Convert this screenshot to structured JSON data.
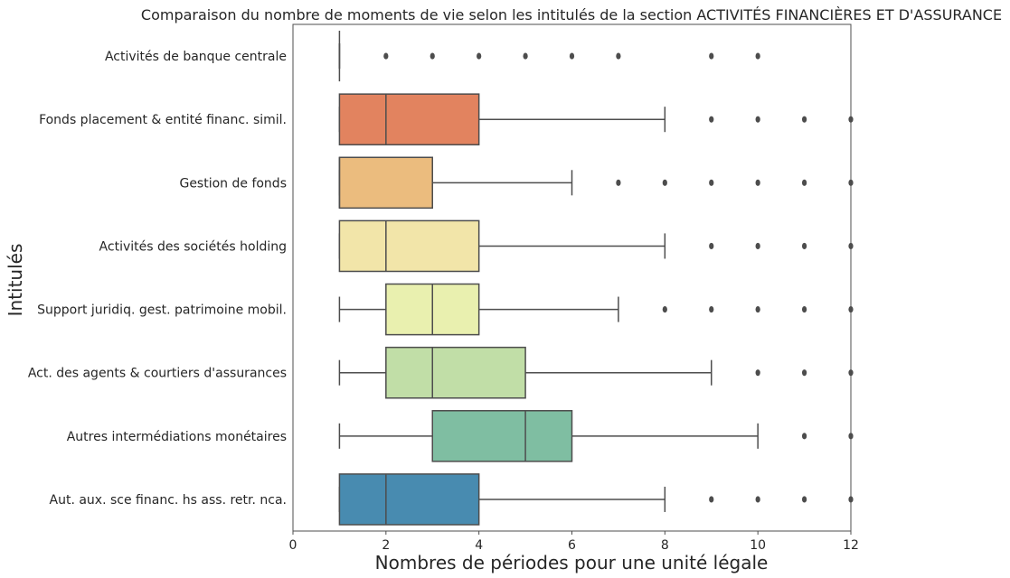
{
  "chart_data": {
    "type": "boxplot",
    "orientation": "horizontal",
    "title": "Comparaison du nombre de moments de vie selon les intitulés de la section ACTIVITÉS FINANCIÈRES ET D'ASSURANCE",
    "xlabel": "Nombres de périodes pour une unité légale",
    "ylabel": "Intitulés",
    "xlim": [
      0,
      12
    ],
    "xticks": [
      0,
      2,
      4,
      6,
      8,
      10,
      12
    ],
    "grid": false,
    "series": [
      {
        "name": "Activités de banque centrale",
        "color": "#9e0142",
        "whislo": 1,
        "q1": 1,
        "med": 1,
        "q3": 1,
        "whishi": 1,
        "fliers": [
          2,
          3,
          4,
          5,
          6,
          7,
          9,
          10
        ]
      },
      {
        "name": "Fonds placement & entité financ. simil.",
        "color": "#e2835f",
        "whislo": 1,
        "q1": 1,
        "med": 2,
        "q3": 4,
        "whishi": 8,
        "fliers": [
          9,
          10,
          11,
          12
        ]
      },
      {
        "name": "Gestion de fonds",
        "color": "#ebbc7e",
        "whislo": 1,
        "q1": 1,
        "med": 1,
        "q3": 3,
        "whishi": 6,
        "fliers": [
          7,
          8,
          9,
          10,
          11,
          12
        ]
      },
      {
        "name": "Activités des sociétés holding",
        "color": "#f2e5a9",
        "whislo": 1,
        "q1": 1,
        "med": 2,
        "q3": 4,
        "whishi": 8,
        "fliers": [
          9,
          10,
          11,
          12
        ]
      },
      {
        "name": "Support juridiq. gest. patrimoine mobil.",
        "color": "#e9f0af",
        "whislo": 1,
        "q1": 2,
        "med": 3,
        "q3": 4,
        "whishi": 7,
        "fliers": [
          8,
          9,
          10,
          11,
          12
        ]
      },
      {
        "name": "Act. des agents & courtiers d'assurances",
        "color": "#c1dea7",
        "whislo": 1,
        "q1": 2,
        "med": 3,
        "q3": 5,
        "whishi": 9,
        "fliers": [
          10,
          11,
          12
        ]
      },
      {
        "name": "Autres intermédiations monétaires",
        "color": "#7fbea2",
        "whislo": 1,
        "q1": 3,
        "med": 5,
        "q3": 6,
        "whishi": 10,
        "fliers": [
          11,
          12
        ]
      },
      {
        "name": "Aut. aux. sce financ. hs ass. retr. nca.",
        "color": "#488bb0",
        "whislo": 1,
        "q1": 1,
        "med": 2,
        "q3": 4,
        "whishi": 8,
        "fliers": [
          9,
          10,
          11,
          12
        ]
      }
    ]
  }
}
